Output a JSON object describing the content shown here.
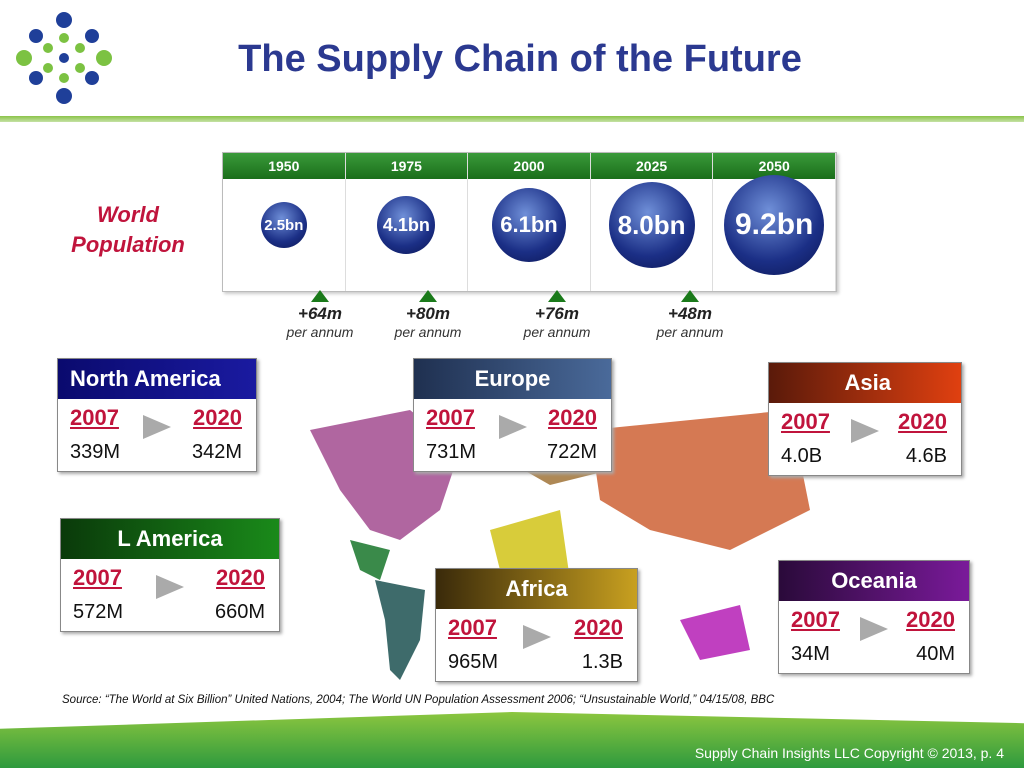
{
  "header": {
    "title": "The Supply Chain of the Future"
  },
  "population": {
    "label": "World Population",
    "timeline": [
      {
        "year": "1950",
        "value": "2.5bn"
      },
      {
        "year": "1975",
        "value": "4.1bn"
      },
      {
        "year": "2000",
        "value": "6.1bn"
      },
      {
        "year": "2025",
        "value": "8.0bn"
      },
      {
        "year": "2050",
        "value": "9.2bn"
      }
    ],
    "growth": [
      {
        "value": "+64m",
        "unit": "per annum"
      },
      {
        "value": "+80m",
        "unit": "per annum"
      },
      {
        "value": "+76m",
        "unit": "per annum"
      },
      {
        "value": "+48m",
        "unit": "per annum"
      }
    ]
  },
  "regions": [
    {
      "name": "North America",
      "from_year": "2007",
      "to_year": "2020",
      "from": "339M",
      "to": "342M"
    },
    {
      "name": "Europe",
      "from_year": "2007",
      "to_year": "2020",
      "from": "731M",
      "to": "722M"
    },
    {
      "name": "Asia",
      "from_year": "2007",
      "to_year": "2020",
      "from": "4.0B",
      "to": "4.6B"
    },
    {
      "name": "L America",
      "from_year": "2007",
      "to_year": "2020",
      "from": "572M",
      "to": "660M"
    },
    {
      "name": "Africa",
      "from_year": "2007",
      "to_year": "2020",
      "from": "965M",
      "to": "1.3B"
    },
    {
      "name": "Oceania",
      "from_year": "2007",
      "to_year": "2020",
      "from": "34M",
      "to": "40M"
    }
  ],
  "source": "Source: “The World at Six Billion” United Nations, 2004; The World UN Population Assessment 2006; “Unsustainable World,” 04/15/08, BBC",
  "footer": "Supply Chain Insights LLC Copyright © 2013, p. 4"
}
